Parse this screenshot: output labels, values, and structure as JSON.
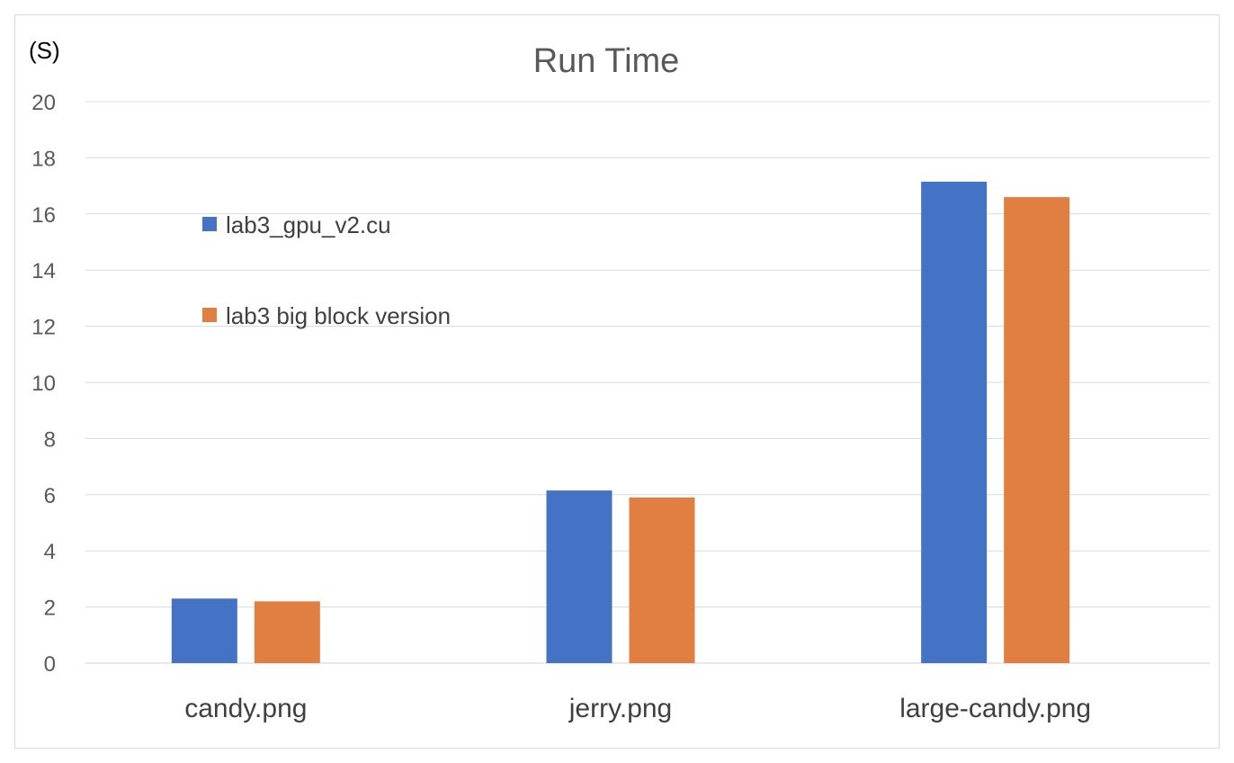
{
  "chart_data": {
    "type": "bar",
    "title": "Run Time",
    "ylabel": "(S)",
    "xlabel": "",
    "categories": [
      "candy.png",
      "jerry.png",
      "large-candy.png"
    ],
    "series": [
      {
        "name": "lab3_gpu_v2.cu",
        "color": "#4472C4",
        "values": [
          2.3,
          6.15,
          17.15
        ]
      },
      {
        "name": "lab3 big block version",
        "color": "#E07F41",
        "values": [
          2.2,
          5.9,
          16.6
        ]
      }
    ],
    "ylim": [
      0,
      20
    ],
    "yticks": [
      "0",
      "2",
      "4",
      "6",
      "8",
      "10",
      "12",
      "14",
      "16",
      "18",
      "20"
    ],
    "grid": true,
    "legend_position": "top-left"
  }
}
